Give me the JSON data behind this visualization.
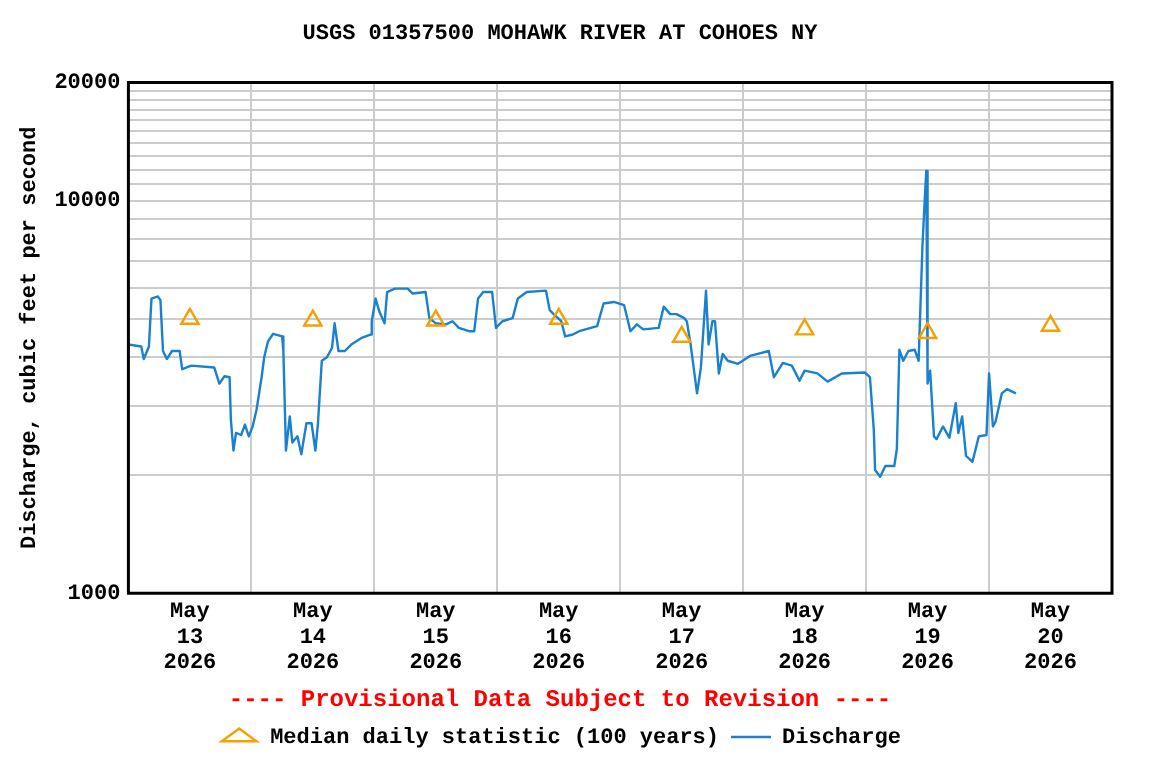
{
  "chart_data": {
    "type": "line",
    "title": "USGS 01357500 MOHAWK RIVER AT COHOES NY",
    "ylabel": "Discharge, cubic feet per second",
    "annotations": [
      "---- Provisional Data Subject to Revision ----"
    ],
    "log": true,
    "grid": true,
    "legend": "bottom",
    "xlim": [
      "2026-05-13T00:00",
      "2026-05-21T00:00"
    ],
    "xticks": [
      {
        "value": "2026-05-13T12:00",
        "label": "May 13 2026"
      },
      {
        "value": "2026-05-14T00:00",
        "label": null
      },
      {
        "value": "2026-05-14T12:00",
        "label": "May 14 2026"
      },
      {
        "value": "2026-05-15T00:00",
        "label": null
      },
      {
        "value": "2026-05-15T12:00",
        "label": "May 15 2026"
      },
      {
        "value": "2026-05-16T00:00",
        "label": null
      },
      {
        "value": "2026-05-16T12:00",
        "label": "May 16 2026"
      },
      {
        "value": "2026-05-17T00:00",
        "label": null
      },
      {
        "value": "2026-05-17T12:00",
        "label": "May 17 2026"
      },
      {
        "value": "2026-05-18T00:00",
        "label": null
      },
      {
        "value": "2026-05-18T12:00",
        "label": "May 18 2026"
      },
      {
        "value": "2026-05-19T00:00",
        "label": null
      },
      {
        "value": "2026-05-19T12:00",
        "label": "May 19 2026"
      },
      {
        "value": "2026-05-20T00:00",
        "label": null
      },
      {
        "value": "2026-05-20T12:00",
        "label": "May 20 2026"
      }
    ],
    "ylim": [
      1000,
      20000
    ],
    "yticks": [
      1000,
      {
        "value": 2000,
        "label": null
      },
      {
        "value": 3000,
        "label": null
      },
      {
        "value": 4000,
        "label": null
      },
      {
        "value": 5000,
        "label": null
      },
      {
        "value": 6000,
        "label": null
      },
      {
        "value": 7000,
        "label": null
      },
      {
        "value": 8000,
        "label": null
      },
      {
        "value": 9000,
        "label": null
      },
      10000,
      {
        "value": 11000,
        "label": null
      },
      {
        "value": 12000,
        "label": null
      },
      {
        "value": 13000,
        "label": null
      },
      {
        "value": 14000,
        "label": null
      },
      {
        "value": 15000,
        "label": null
      },
      {
        "value": 16000,
        "label": null
      },
      {
        "value": 17000,
        "label": null
      },
      {
        "value": 18000,
        "label": null
      },
      {
        "value": 19000,
        "label": null
      },
      20000
    ],
    "series": [
      {
        "name": "Median daily statistic (100 years)",
        "type": "scatter",
        "marker": "triangle",
        "color": "#f5a000",
        "x": [
          "2026-05-13T12:00",
          "2026-05-14T12:00",
          "2026-05-15T12:00",
          "2026-05-16T12:00",
          "2026-05-17T12:00",
          "2026-05-18T12:00",
          "2026-05-19T12:00",
          "2026-05-20T12:00"
        ],
        "values": [
          5000,
          4950,
          4950,
          5000,
          4500,
          4700,
          4600,
          4800
        ]
      },
      {
        "name": "Discharge",
        "color": "#1a80d0",
        "x": [
          "2026-05-13T00:00",
          "2026-05-13T02:30",
          "2026-05-13T03:00",
          "2026-05-13T04:00",
          "2026-05-13T04:30",
          "2026-05-13T05:45",
          "2026-05-13T06:15",
          "2026-05-13T06:45",
          "2026-05-13T07:30",
          "2026-05-13T08:30",
          "2026-05-13T10:00",
          "2026-05-13T10:30",
          "2026-05-13T12:15",
          "2026-05-13T16:45",
          "2026-05-13T17:45",
          "2026-05-13T18:45",
          "2026-05-13T19:45",
          "2026-05-13T20:00",
          "2026-05-13T20:30",
          "2026-05-13T21:00",
          "2026-05-13T22:00",
          "2026-05-13T22:45",
          "2026-05-13T23:30",
          "2026-05-14T00:15",
          "2026-05-14T01:00",
          "2026-05-14T02:00",
          "2026-05-14T02:30",
          "2026-05-14T03:15",
          "2026-05-14T04:15",
          "2026-05-14T06:00",
          "2026-05-14T06:15",
          "2026-05-14T06:45",
          "2026-05-14T07:30",
          "2026-05-14T08:00",
          "2026-05-14T09:00",
          "2026-05-14T09:45",
          "2026-05-14T10:45",
          "2026-05-14T11:45",
          "2026-05-14T12:30",
          "2026-05-14T13:00",
          "2026-05-14T13:45",
          "2026-05-14T14:45",
          "2026-05-14T15:45",
          "2026-05-14T16:15",
          "2026-05-14T17:00",
          "2026-05-14T18:15",
          "2026-05-14T19:30",
          "2026-05-14T21:30",
          "2026-05-14T23:15",
          "2026-05-14T23:30",
          "2026-05-15T00:15",
          "2026-05-15T01:00",
          "2026-05-15T02:00",
          "2026-05-15T02:30",
          "2026-05-15T04:00",
          "2026-05-15T06:30",
          "2026-05-15T07:30",
          "2026-05-15T10:00",
          "2026-05-15T10:45",
          "2026-05-15T12:00",
          "2026-05-15T14:00",
          "2026-05-15T15:15",
          "2026-05-15T16:30",
          "2026-05-15T18:30",
          "2026-05-15T19:30",
          "2026-05-15T20:15",
          "2026-05-15T21:15",
          "2026-05-15T23:00",
          "2026-05-15T23:45",
          "2026-05-16T01:00",
          "2026-05-16T03:00",
          "2026-05-16T04:00",
          "2026-05-16T05:45",
          "2026-05-16T09:30",
          "2026-05-16T10:15",
          "2026-05-16T11:00",
          "2026-05-16T12:30",
          "2026-05-16T13:15",
          "2026-05-16T14:45",
          "2026-05-16T16:00",
          "2026-05-16T19:30",
          "2026-05-16T20:45",
          "2026-05-16T22:45",
          "2026-05-17T00:45",
          "2026-05-17T02:00",
          "2026-05-17T03:15",
          "2026-05-17T04:30",
          "2026-05-17T07:30",
          "2026-05-17T08:30",
          "2026-05-17T09:45",
          "2026-05-17T11:00",
          "2026-05-17T12:30",
          "2026-05-17T13:00",
          "2026-05-17T13:45",
          "2026-05-17T15:00",
          "2026-05-17T15:45",
          "2026-05-17T16:45",
          "2026-05-17T17:15",
          "2026-05-17T18:00",
          "2026-05-17T18:30",
          "2026-05-17T19:15",
          "2026-05-17T20:00",
          "2026-05-17T21:00",
          "2026-05-17T23:00",
          "2026-05-18T01:30",
          "2026-05-18T05:00",
          "2026-05-18T06:00",
          "2026-05-18T07:45",
          "2026-05-18T09:30",
          "2026-05-18T11:00",
          "2026-05-18T12:00",
          "2026-05-18T14:30",
          "2026-05-18T16:30",
          "2026-05-18T19:15",
          "2026-05-18T23:45",
          "2026-05-19T00:45",
          "2026-05-19T01:30",
          "2026-05-19T01:45",
          "2026-05-19T02:45",
          "2026-05-19T03:45",
          "2026-05-19T05:30",
          "2026-05-19T06:00",
          "2026-05-19T06:30",
          "2026-05-19T07:15",
          "2026-05-19T08:15",
          "2026-05-19T09:30",
          "2026-05-19T10:15",
          "2026-05-19T11:00",
          "2026-05-19T11:30",
          "2026-05-19T11:45",
          "2026-05-19T12:00",
          "2026-05-19T12:30",
          "2026-05-19T13:15",
          "2026-05-19T13:45",
          "2026-05-19T15:00",
          "2026-05-19T16:15",
          "2026-05-19T17:30",
          "2026-05-19T18:00",
          "2026-05-19T18:45",
          "2026-05-19T19:30",
          "2026-05-19T20:45",
          "2026-05-19T22:00",
          "2026-05-19T23:30",
          "2026-05-20T00:00",
          "2026-05-20T00:45",
          "2026-05-20T01:15",
          "2026-05-20T02:30",
          "2026-05-20T03:30",
          "2026-05-20T05:15"
        ],
        "values": [
          4300,
          4250,
          3950,
          4250,
          5630,
          5700,
          5580,
          4140,
          3950,
          4140,
          4140,
          3720,
          3800,
          3760,
          3420,
          3570,
          3550,
          2770,
          2310,
          2560,
          2530,
          2690,
          2510,
          2660,
          2930,
          3550,
          3990,
          4380,
          4580,
          4510,
          4140,
          2310,
          2820,
          2420,
          2510,
          2260,
          2710,
          2710,
          2310,
          2710,
          3910,
          3990,
          4220,
          4870,
          4140,
          4140,
          4300,
          4470,
          4560,
          4930,
          5630,
          5210,
          4870,
          5850,
          5970,
          5970,
          5800,
          5850,
          5020,
          4870,
          4840,
          4930,
          4740,
          4650,
          4650,
          5630,
          5850,
          5850,
          4740,
          4930,
          5020,
          5630,
          5850,
          5900,
          5260,
          5140,
          4930,
          4510,
          4560,
          4650,
          4790,
          5470,
          5520,
          5420,
          4650,
          4840,
          4700,
          4740,
          5370,
          5140,
          5140,
          5020,
          4930,
          4300,
          3230,
          3760,
          5900,
          4300,
          4930,
          4930,
          3630,
          4070,
          3910,
          3840,
          4030,
          4140,
          3550,
          3860,
          3800,
          3480,
          3690,
          3630,
          3460,
          3630,
          3650,
          3550,
          2610,
          2060,
          1980,
          2110,
          2110,
          2330,
          4170,
          3910,
          4140,
          4170,
          3910,
          7660,
          10400,
          11900,
          3420,
          3690,
          2510,
          2470,
          2660,
          2490,
          3050,
          2560,
          2820,
          2240,
          2160,
          2510,
          2530,
          3630,
          2660,
          2730,
          3230,
          3310,
          3230
        ]
      }
    ]
  }
}
